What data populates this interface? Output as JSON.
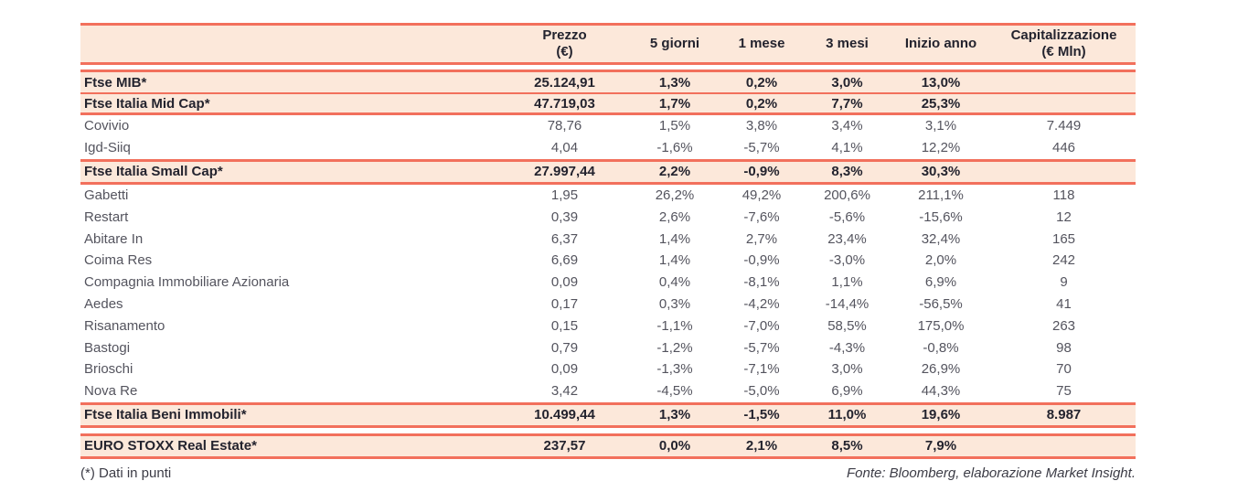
{
  "table": {
    "columns": [
      {
        "label": ""
      },
      {
        "label": "Prezzo\n(€)"
      },
      {
        "label": "5 giorni"
      },
      {
        "label": "1 mese"
      },
      {
        "label": "3 mesi"
      },
      {
        "label": "Inizio anno"
      },
      {
        "label": "Capitalizzazione\n(€ Mln)"
      }
    ],
    "sections": [
      {
        "kind": "band",
        "rows": [
          {
            "name": "Ftse MIB*",
            "cells": [
              "25.124,91",
              "1,3%",
              "0,2%",
              "3,0%",
              "13,0%",
              ""
            ]
          },
          {
            "name": "Ftse Italia Mid Cap*",
            "cells": [
              "47.719,03",
              "1,7%",
              "0,2%",
              "7,7%",
              "25,3%",
              ""
            ]
          }
        ]
      },
      {
        "kind": "plain",
        "rows": [
          {
            "name": "Covivio",
            "cells": [
              "78,76",
              "1,5%",
              "3,8%",
              "3,4%",
              "3,1%",
              "7.449"
            ]
          },
          {
            "name": "Igd-Siiq",
            "cells": [
              "4,04",
              "-1,6%",
              "-5,7%",
              "4,1%",
              "12,2%",
              "446"
            ]
          }
        ]
      },
      {
        "kind": "band",
        "rows": [
          {
            "name": "Ftse Italia Small Cap*",
            "cells": [
              "27.997,44",
              "2,2%",
              "-0,9%",
              "8,3%",
              "30,3%",
              ""
            ]
          }
        ]
      },
      {
        "kind": "plain",
        "rows": [
          {
            "name": "Gabetti",
            "cells": [
              "1,95",
              "26,2%",
              "49,2%",
              "200,6%",
              "211,1%",
              "118"
            ]
          },
          {
            "name": "Restart",
            "cells": [
              "0,39",
              "2,6%",
              "-7,6%",
              "-5,6%",
              "-15,6%",
              "12"
            ]
          },
          {
            "name": "Abitare In",
            "cells": [
              "6,37",
              "1,4%",
              "2,7%",
              "23,4%",
              "32,4%",
              "165"
            ]
          },
          {
            "name": "Coima Res",
            "cells": [
              "6,69",
              "1,4%",
              "-0,9%",
              "-3,0%",
              "2,0%",
              "242"
            ]
          },
          {
            "name": "Compagnia Immobiliare Azionaria",
            "cells": [
              "0,09",
              "0,4%",
              "-8,1%",
              "1,1%",
              "6,9%",
              "9"
            ]
          },
          {
            "name": "Aedes",
            "cells": [
              "0,17",
              "0,3%",
              "-4,2%",
              "-14,4%",
              "-56,5%",
              "41"
            ]
          },
          {
            "name": "Risanamento",
            "cells": [
              "0,15",
              "-1,1%",
              "-7,0%",
              "58,5%",
              "175,0%",
              "263"
            ]
          },
          {
            "name": "Bastogi",
            "cells": [
              "0,79",
              "-1,2%",
              "-5,7%",
              "-4,3%",
              "-0,8%",
              "98"
            ]
          },
          {
            "name": "Brioschi",
            "cells": [
              "0,09",
              "-1,3%",
              "-7,1%",
              "3,0%",
              "26,9%",
              "70"
            ]
          },
          {
            "name": "Nova Re",
            "cells": [
              "3,42",
              "-4,5%",
              "-5,0%",
              "6,9%",
              "44,3%",
              "75"
            ]
          }
        ]
      },
      {
        "kind": "band",
        "rows": [
          {
            "name": "Ftse Italia Beni Immobili*",
            "cells": [
              "10.499,44",
              "1,3%",
              "-1,5%",
              "11,0%",
              "19,6%",
              "8.987"
            ]
          }
        ]
      },
      {
        "kind": "gap"
      },
      {
        "kind": "band",
        "rows": [
          {
            "name": "EURO STOXX Real Estate*",
            "cells": [
              "237,57",
              "0,0%",
              "2,1%",
              "8,5%",
              "7,9%",
              ""
            ]
          }
        ]
      }
    ]
  },
  "footer": {
    "note": "(*) Dati in punti",
    "source": "Fonte: Bloomberg, elaborazione Market Insight."
  },
  "colors": {
    "accent_border": "#f2705c",
    "band_fill": "#fce8da",
    "text_dark": "#23232e",
    "text_body": "#54545e"
  }
}
